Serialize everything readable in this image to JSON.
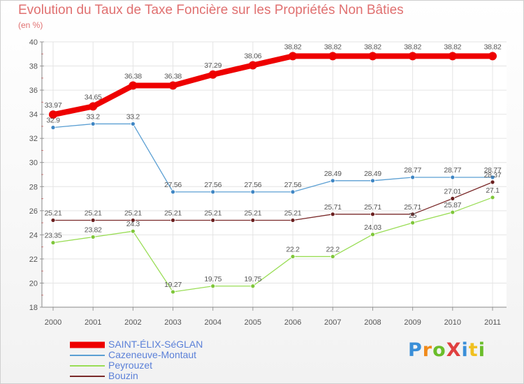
{
  "chart_data": {
    "type": "line",
    "title": "Evolution du Taux de Taxe Foncière sur les Propriétés Non Bâties",
    "subtitle": "(en %)",
    "xlabel": "",
    "ylabel": "",
    "categories": [
      "2000",
      "2001",
      "2002",
      "2003",
      "2004",
      "2005",
      "2006",
      "2007",
      "2008",
      "2009",
      "2010",
      "2011"
    ],
    "ylim": [
      18,
      40
    ],
    "yticks": [
      18,
      20,
      22,
      24,
      26,
      28,
      30,
      32,
      34,
      36,
      38,
      40
    ],
    "grid": true,
    "legend_position": "bottom-left",
    "series": [
      {
        "name": "SAINT-ÉLIX-SéGLAN",
        "color": "#ee0000",
        "values": [
          33.97,
          34.65,
          36.38,
          36.38,
          37.29,
          38.06,
          38.82,
          38.82,
          38.82,
          38.82,
          38.82,
          38.82
        ],
        "labels": [
          "33.97",
          "34.65",
          "36.38",
          "36.38",
          "37.29",
          "38.06",
          "38.82",
          "38.82",
          "38.82",
          "38.82",
          "38.82",
          "38.82"
        ]
      },
      {
        "name": "Cazeneuve-Montaut",
        "color": "#5b9fd3",
        "values": [
          32.9,
          33.2,
          33.2,
          27.56,
          27.56,
          27.56,
          27.56,
          28.49,
          28.49,
          28.77,
          28.77,
          28.77
        ],
        "labels": [
          "32.9",
          "33.2",
          "33.2",
          "27.56",
          "27.56",
          "27.56",
          "27.56",
          "28.49",
          "28.49",
          "28.77",
          "28.77",
          "28.77"
        ]
      },
      {
        "name": "Peyrouzet",
        "color": "#99dd55",
        "values": [
          23.35,
          23.82,
          24.3,
          19.27,
          19.75,
          19.75,
          22.2,
          22.2,
          24.03,
          25,
          25.87,
          27.1
        ],
        "labels": [
          "23.35",
          "23.82",
          "24.3",
          "19.27",
          "19.75",
          "19.75",
          "22.2",
          "22.2",
          "24.03",
          "25",
          "25.87",
          "27.1"
        ]
      },
      {
        "name": "Bouzin",
        "color": "#7a2a2a",
        "values": [
          25.21,
          25.21,
          25.21,
          25.21,
          25.21,
          25.21,
          25.21,
          25.71,
          25.71,
          25.71,
          27.01,
          28.37
        ],
        "labels": [
          "25.21",
          "25.21",
          "25.21",
          "25.21",
          "25.21",
          "25.21",
          "25.21",
          "25.71",
          "25.71",
          "25.71",
          "27.01",
          "28.37"
        ]
      }
    ]
  },
  "legend": {
    "items": [
      "SAINT-ÉLIX-SéGLAN",
      "Cazeneuve-Montaut",
      "Peyrouzet",
      "Bouzin"
    ]
  },
  "logo": {
    "text": "ProXiti",
    "letter_colors": [
      "#3a8fd8",
      "#f08a1a",
      "#6abd2a",
      "#e04040",
      "#3a8fd8",
      "#f0c020",
      "#6abd2a"
    ]
  }
}
